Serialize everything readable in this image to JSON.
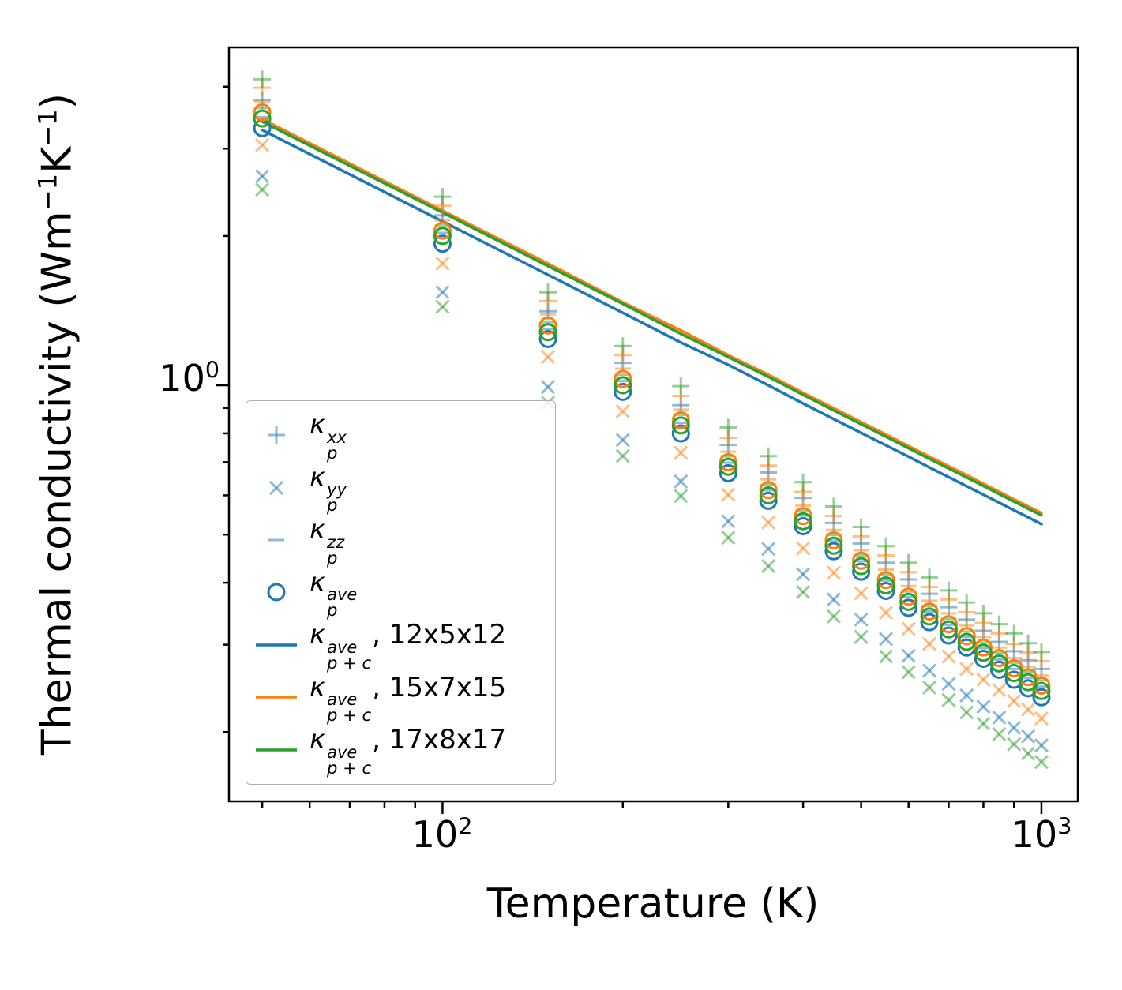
{
  "palette": {
    "blue": "#1f77b4",
    "orange": "#ff7f0e",
    "green": "#2ca02c",
    "black": "#000000"
  },
  "axes": {
    "xlabel": "Temperature (K)",
    "ylabel": {
      "pre": "Thermal conductivity (Wm",
      "sup1": "−1",
      "mid": "K",
      "sup2": "−1",
      "post": ")"
    },
    "xticks": [
      {
        "base": "10",
        "exp": "2"
      },
      {
        "base": "10",
        "exp": "3"
      }
    ],
    "ytick": {
      "base": "10",
      "exp": "0"
    }
  },
  "legend": {
    "position": "center left",
    "items": [
      {
        "marker": "plus",
        "color": "#1f77b4",
        "opacity": 0.5,
        "symbol": "κ",
        "sup": "xx",
        "sub": "p",
        "suffix": ""
      },
      {
        "marker": "x",
        "color": "#1f77b4",
        "opacity": 0.5,
        "symbol": "κ",
        "sup": "yy",
        "sub": "p",
        "suffix": ""
      },
      {
        "marker": "dash",
        "color": "#1f77b4",
        "opacity": 0.5,
        "symbol": "κ",
        "sup": "zz",
        "sub": "p",
        "suffix": ""
      },
      {
        "marker": "circle",
        "color": "#1f77b4",
        "opacity": 1,
        "symbol": "κ",
        "sup": "ave",
        "sub": "p",
        "suffix": ""
      },
      {
        "marker": "line",
        "color": "#1f77b4",
        "opacity": 1,
        "symbol": "κ",
        "sup": "ave",
        "sub": "p + c",
        "suffix": ", 12x5x12"
      },
      {
        "marker": "line",
        "color": "#ff7f0e",
        "opacity": 1,
        "symbol": "κ",
        "sup": "ave",
        "sub": "p + c",
        "suffix": ", 15x7x15"
      },
      {
        "marker": "line",
        "color": "#2ca02c",
        "opacity": 1,
        "symbol": "κ",
        "sup": "ave",
        "sub": "p + c",
        "suffix": ", 17x8x17"
      }
    ]
  },
  "chart_data": {
    "type": "scatter",
    "scale": "log-log",
    "title": "",
    "xlabel": "Temperature (K)",
    "ylabel": "Thermal conductivity (Wm⁻¹K⁻¹)",
    "xlim": [
      44,
      1150
    ],
    "ylim": [
      0.145,
      4.8
    ],
    "grid": false,
    "xticks_major": [
      100,
      1000
    ],
    "xticks_minor": [
      50,
      60,
      70,
      80,
      90,
      200,
      300,
      400,
      500,
      600,
      700,
      800,
      900
    ],
    "yticks_major": [
      1
    ],
    "yticks_minor": [
      0.2,
      0.3,
      0.4,
      0.5,
      0.6,
      0.7,
      0.8,
      0.9,
      2,
      3,
      4
    ],
    "x": [
      50,
      100,
      150,
      200,
      250,
      300,
      350,
      400,
      450,
      500,
      550,
      600,
      650,
      700,
      750,
      800,
      850,
      900,
      950,
      1000
    ],
    "series": [
      {
        "name": "kappa_p_xx 12x5x12",
        "marker": "plus",
        "color": "#1f77b4",
        "opacity": 0.5,
        "values": [
          3.76,
          2.2,
          1.41,
          1.11,
          0.912,
          0.758,
          0.667,
          0.593,
          0.528,
          0.48,
          0.439,
          0.406,
          0.38,
          0.357,
          0.337,
          0.32,
          0.304,
          0.291,
          0.279,
          0.268
        ]
      },
      {
        "name": "kappa_p_xx 15x7x15",
        "marker": "plus",
        "color": "#ff7f0e",
        "opacity": 0.5,
        "values": [
          3.98,
          2.3,
          1.48,
          1.15,
          0.952,
          0.784,
          0.689,
          0.61,
          0.545,
          0.496,
          0.454,
          0.42,
          0.392,
          0.37,
          0.349,
          0.332,
          0.316,
          0.301,
          0.289,
          0.278
        ]
      },
      {
        "name": "kappa_p_xx 17x8x17",
        "marker": "plus",
        "color": "#2ca02c",
        "opacity": 0.5,
        "values": [
          4.14,
          2.4,
          1.54,
          1.2,
          0.996,
          0.822,
          0.72,
          0.638,
          0.57,
          0.518,
          0.474,
          0.439,
          0.41,
          0.386,
          0.365,
          0.347,
          0.33,
          0.316,
          0.302,
          0.29
        ]
      },
      {
        "name": "kappa_p_yy 12x5x12",
        "marker": "x",
        "color": "#1f77b4",
        "opacity": 0.5,
        "values": [
          2.64,
          1.54,
          0.992,
          0.776,
          0.64,
          0.532,
          0.468,
          0.416,
          0.37,
          0.337,
          0.308,
          0.285,
          0.266,
          0.25,
          0.237,
          0.225,
          0.214,
          0.204,
          0.196,
          0.188
        ]
      },
      {
        "name": "kappa_p_yy 15x7x15",
        "marker": "x",
        "color": "#ff7f0e",
        "opacity": 0.5,
        "values": [
          3.05,
          1.76,
          1.14,
          0.886,
          0.731,
          0.602,
          0.529,
          0.469,
          0.419,
          0.381,
          0.348,
          0.323,
          0.301,
          0.284,
          0.268,
          0.255,
          0.243,
          0.231,
          0.222,
          0.213
        ]
      },
      {
        "name": "kappa_p_yy 17x8x17",
        "marker": "x",
        "color": "#2ca02c",
        "opacity": 0.5,
        "values": [
          2.48,
          1.44,
          0.922,
          0.72,
          0.598,
          0.493,
          0.432,
          0.383,
          0.342,
          0.311,
          0.284,
          0.264,
          0.246,
          0.232,
          0.219,
          0.208,
          0.198,
          0.189,
          0.181,
          0.174
        ]
      },
      {
        "name": "kappa_p_zz 12x5x12",
        "marker": "dash",
        "color": "#1f77b4",
        "opacity": 0.5,
        "values": [
          3.47,
          2.03,
          1.3,
          1.02,
          0.84,
          0.698,
          0.614,
          0.546,
          0.486,
          0.442,
          0.404,
          0.374,
          0.35,
          0.329,
          0.311,
          0.295,
          0.28,
          0.268,
          0.257,
          0.247
        ]
      },
      {
        "name": "kappa_p_zz 15x7x15",
        "marker": "dash",
        "color": "#ff7f0e",
        "opacity": 0.5,
        "values": [
          3.73,
          2.15,
          1.39,
          1.08,
          0.893,
          0.735,
          0.646,
          0.572,
          0.511,
          0.465,
          0.425,
          0.394,
          0.368,
          0.347,
          0.328,
          0.311,
          0.296,
          0.282,
          0.271,
          0.26
        ]
      },
      {
        "name": "kappa_p_zz 17x8x17",
        "marker": "dash",
        "color": "#2ca02c",
        "opacity": 0.5,
        "values": [
          3.62,
          2.1,
          1.34,
          1.05,
          0.872,
          0.719,
          0.63,
          0.559,
          0.499,
          0.454,
          0.415,
          0.384,
          0.359,
          0.338,
          0.319,
          0.303,
          0.289,
          0.276,
          0.265,
          0.254
        ]
      },
      {
        "name": "kappa_p_ave 12x5x12",
        "marker": "circle",
        "color": "#1f77b4",
        "opacity": 1,
        "values": [
          3.3,
          1.93,
          1.24,
          0.97,
          0.8,
          0.665,
          0.585,
          0.52,
          0.463,
          0.421,
          0.385,
          0.356,
          0.333,
          0.313,
          0.296,
          0.281,
          0.267,
          0.255,
          0.245,
          0.235
        ]
      },
      {
        "name": "kappa_p_ave 15x7x15",
        "marker": "circle",
        "color": "#ff7f0e",
        "opacity": 1,
        "values": [
          3.55,
          2.05,
          1.32,
          1.03,
          0.85,
          0.7,
          0.615,
          0.545,
          0.487,
          0.443,
          0.405,
          0.375,
          0.35,
          0.33,
          0.312,
          0.296,
          0.282,
          0.269,
          0.258,
          0.248
        ]
      },
      {
        "name": "kappa_p_ave 17x8x17",
        "marker": "circle",
        "color": "#2ca02c",
        "opacity": 1,
        "values": [
          3.45,
          2.0,
          1.28,
          1.0,
          0.83,
          0.685,
          0.6,
          0.532,
          0.475,
          0.432,
          0.395,
          0.366,
          0.342,
          0.322,
          0.304,
          0.289,
          0.275,
          0.263,
          0.252,
          0.242
        ]
      }
    ],
    "lines": [
      {
        "name": "kappa_p+c_ave 12x5x12",
        "color": "#1f77b4",
        "values": [
          3.27,
          2.14,
          1.67,
          1.4,
          1.22,
          1.1,
          1.0,
          0.919,
          0.855,
          0.802,
          0.757,
          0.718,
          0.683,
          0.653,
          0.626,
          0.602,
          0.58,
          0.56,
          0.542,
          0.525
        ]
      },
      {
        "name": "kappa_p+c_ave 15x7x15",
        "color": "#ff7f0e",
        "values": [
          3.44,
          2.25,
          1.76,
          1.47,
          1.29,
          1.15,
          1.05,
          0.966,
          0.899,
          0.843,
          0.796,
          0.754,
          0.718,
          0.687,
          0.659,
          0.633,
          0.61,
          0.589,
          0.57,
          0.553
        ]
      },
      {
        "name": "kappa_p+c_ave 17x8x17",
        "color": "#2ca02c",
        "values": [
          3.4,
          2.23,
          1.74,
          1.46,
          1.27,
          1.14,
          1.04,
          0.957,
          0.89,
          0.835,
          0.788,
          0.747,
          0.711,
          0.68,
          0.652,
          0.627,
          0.604,
          0.583,
          0.564,
          0.547
        ]
      }
    ]
  }
}
